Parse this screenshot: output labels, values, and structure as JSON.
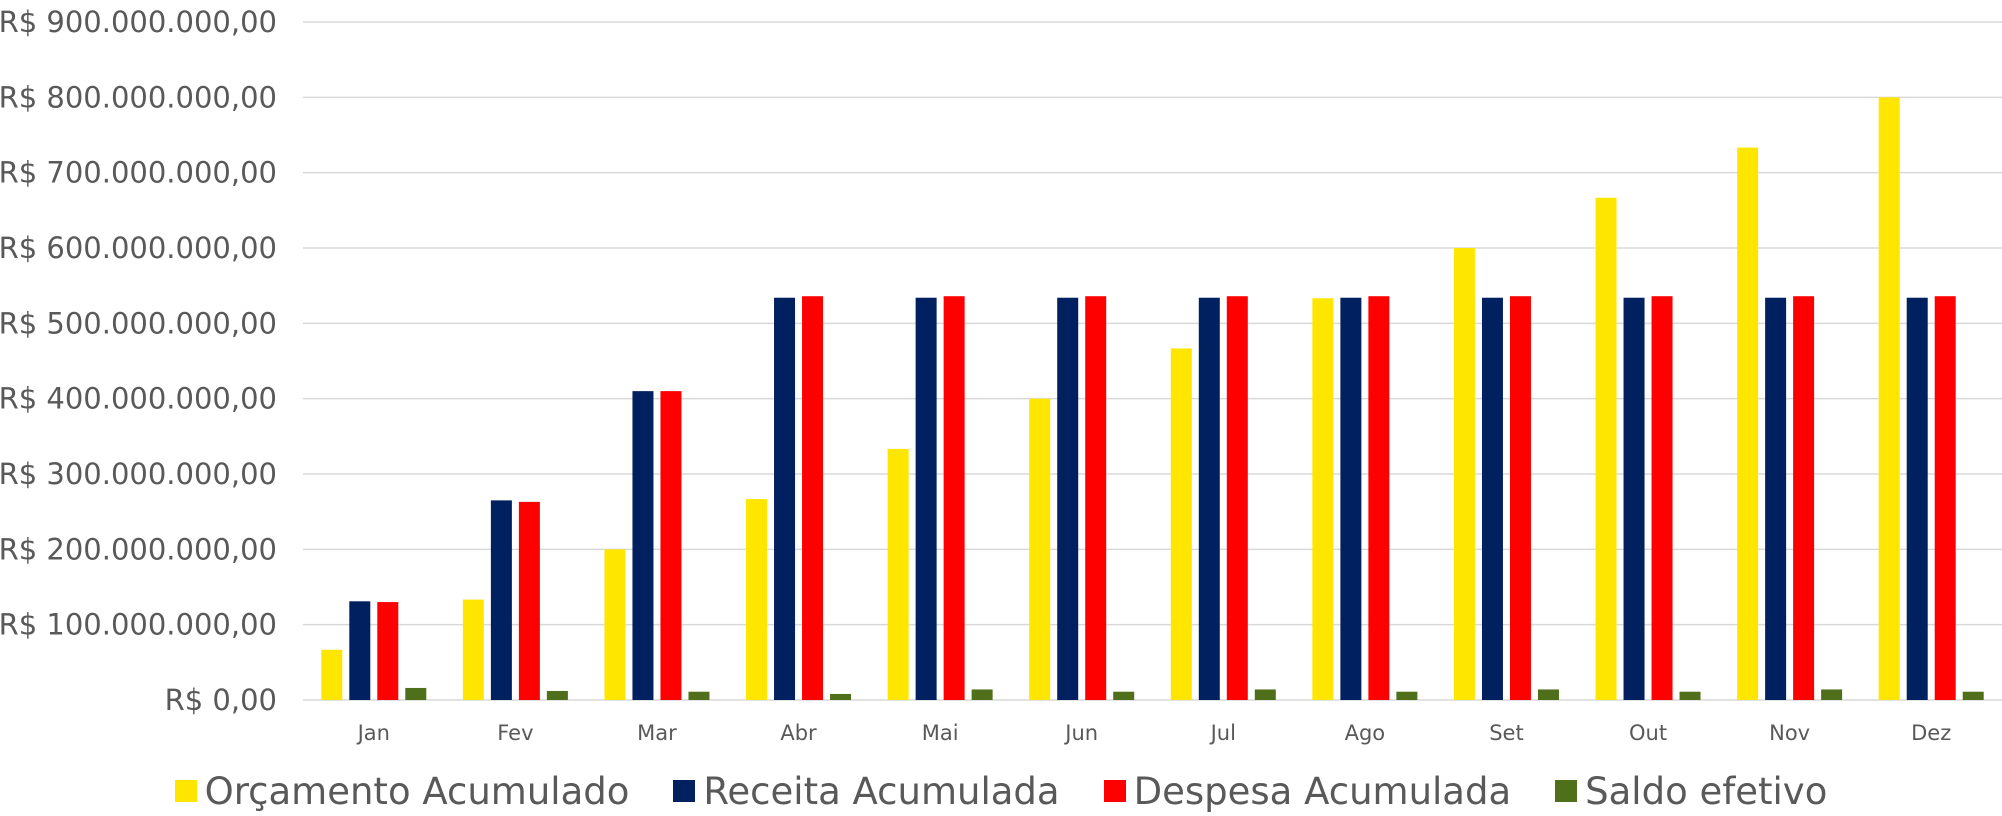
{
  "chart_data": {
    "type": "bar",
    "title": "",
    "xlabel": "",
    "ylabel": "",
    "categories": [
      "Jan",
      "Fev",
      "Mar",
      "Abr",
      "Mai",
      "Jun",
      "Jul",
      "Ago",
      "Set",
      "Out",
      "Nov",
      "Dez"
    ],
    "ylim": [
      0,
      900000000
    ],
    "y_ticks": [
      0,
      100000000,
      200000000,
      300000000,
      400000000,
      500000000,
      600000000,
      700000000,
      800000000,
      900000000
    ],
    "y_tick_labels": [
      "R$ 0,00",
      "R$ 100.000.000,00",
      "R$ 200.000.000,00",
      "R$ 300.000.000,00",
      "R$ 400.000.000,00",
      "R$ 500.000.000,00",
      "R$ 600.000.000,00",
      "R$ 700.000.000,00",
      "R$ 800.000.000,00",
      "R$ 900.000.000,00"
    ],
    "grid": true,
    "legend_position": "bottom",
    "series": [
      {
        "name": "Orçamento Acumulado",
        "color": "#FFE600",
        "values": [
          66700000,
          133300000,
          200000000,
          266700000,
          333300000,
          400000000,
          466700000,
          533300000,
          600000000,
          666700000,
          733300000,
          800000000
        ]
      },
      {
        "name": "Receita Acumulada",
        "color": "#002060",
        "values": [
          131000000,
          265000000,
          410000000,
          534000000,
          534000000,
          534000000,
          534000000,
          534000000,
          534000000,
          534000000,
          534000000,
          534000000
        ]
      },
      {
        "name": "Despesa Acumulada",
        "color": "#FF0000",
        "values": [
          130000000,
          263000000,
          410000000,
          536000000,
          536000000,
          536000000,
          536000000,
          536000000,
          536000000,
          536000000,
          536000000,
          536000000
        ]
      },
      {
        "name": "Saldo efetivo",
        "color": "#4F6F1A",
        "values": [
          16000000,
          12000000,
          11000000,
          8000000,
          14000000,
          11000000,
          14000000,
          11000000,
          14000000,
          11000000,
          14000000,
          11000000
        ]
      }
    ]
  }
}
